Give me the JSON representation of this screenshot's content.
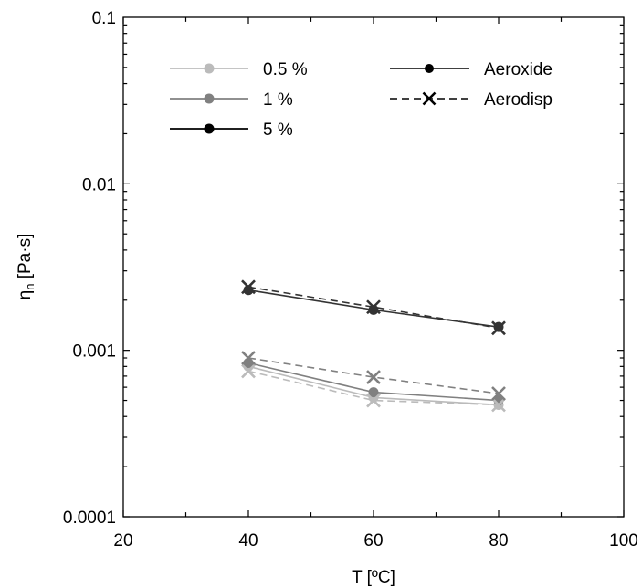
{
  "chart_data": {
    "type": "line",
    "title": "",
    "xlabel": "T [ºC]",
    "ylabel": "ηn [Pa·s]",
    "ylabel_main": "η",
    "ylabel_sub": "n",
    "ylabel_unit": " [Pa·s]",
    "xlim": [
      20,
      100
    ],
    "ylim": [
      0.0001,
      0.1
    ],
    "yscale": "log",
    "x_ticks": [
      20,
      40,
      60,
      80,
      100
    ],
    "x_tick_labels": [
      "20",
      "40",
      "60",
      "80",
      "100"
    ],
    "y_ticks": [
      0.0001,
      0.001,
      0.01,
      0.1
    ],
    "y_tick_labels": [
      "0.0001",
      "0.001",
      "0.01",
      "0.1"
    ],
    "grid": false,
    "legend_placement": "top",
    "legend_concentration": [
      {
        "label": "0.5 %",
        "color": "#bbbbbb"
      },
      {
        "label": "1 %",
        "color": "#808080"
      },
      {
        "label": "5 %",
        "color": "#000000"
      }
    ],
    "legend_type": [
      {
        "label": "Aeroxide",
        "style": "solid",
        "marker": "circle"
      },
      {
        "label": "Aerodisp",
        "style": "dashed",
        "marker": "x"
      }
    ],
    "series": [
      {
        "type": "Aeroxide",
        "concentration": "0.5 %",
        "color": "#bbbbbb",
        "style": "solid",
        "marker": "circle",
        "x": [
          40,
          60,
          80
        ],
        "y": [
          0.0008,
          0.00052,
          0.00047
        ]
      },
      {
        "type": "Aeroxide",
        "concentration": "1 %",
        "color": "#808080",
        "style": "solid",
        "marker": "circle",
        "x": [
          40,
          60,
          80
        ],
        "y": [
          0.00084,
          0.00056,
          0.0005
        ]
      },
      {
        "type": "Aeroxide",
        "concentration": "5 %",
        "color": "#333333",
        "style": "solid",
        "marker": "circle",
        "x": [
          40,
          60,
          80
        ],
        "y": [
          0.0023,
          0.00175,
          0.00138
        ]
      },
      {
        "type": "Aerodisp",
        "concentration": "0.5 %",
        "color": "#bbbbbb",
        "style": "dashed",
        "marker": "x",
        "x": [
          40,
          60,
          80
        ],
        "y": [
          0.00075,
          0.0005,
          0.00047
        ]
      },
      {
        "type": "Aerodisp",
        "concentration": "1 %",
        "color": "#808080",
        "style": "dashed",
        "marker": "x",
        "x": [
          40,
          60,
          80
        ],
        "y": [
          0.0009,
          0.00069,
          0.00055
        ]
      },
      {
        "type": "Aerodisp",
        "concentration": "5 %",
        "color": "#333333",
        "style": "dashed",
        "marker": "x",
        "x": [
          40,
          60,
          80
        ],
        "y": [
          0.0024,
          0.00182,
          0.00136
        ]
      }
    ]
  }
}
